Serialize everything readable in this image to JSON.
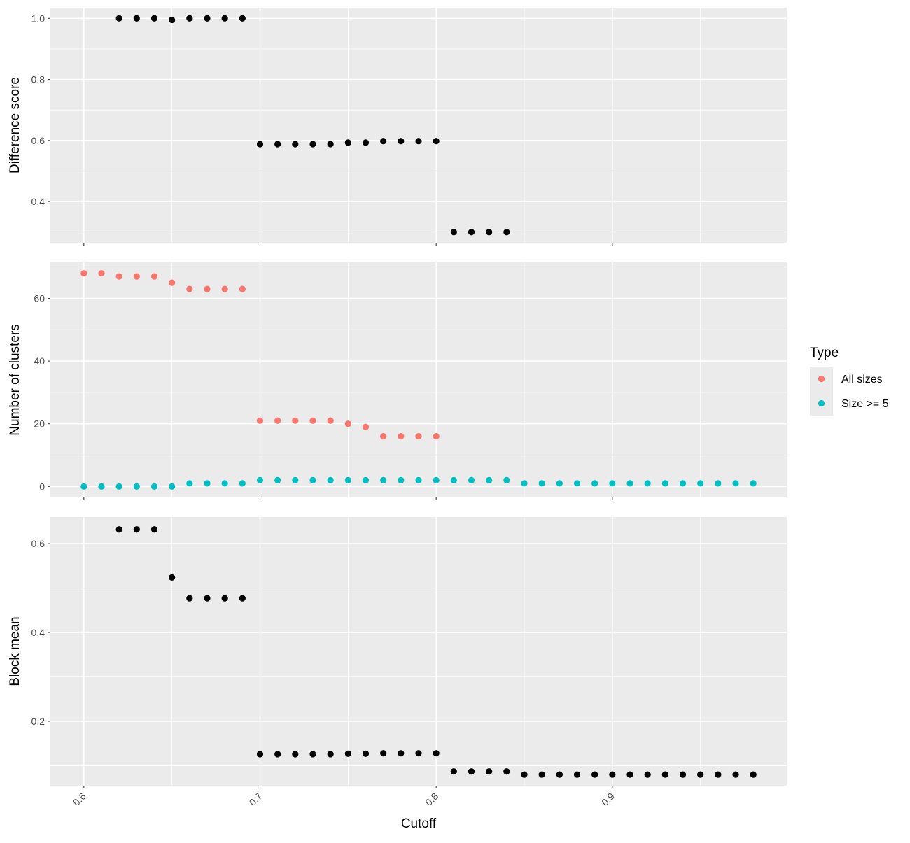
{
  "chart_data": [
    {
      "type": "scatter",
      "ylabel": "Difference score",
      "ylim": [
        0.265,
        1.035
      ],
      "yticks": [
        0.4,
        0.6,
        0.8,
        1.0
      ],
      "ytick_labels": [
        "0.4",
        "0.6",
        "0.8",
        "1.0"
      ],
      "grid": true,
      "series": [
        {
          "color": "#000000",
          "x": [
            0.62,
            0.63,
            0.64,
            0.65,
            0.66,
            0.67,
            0.68,
            0.69,
            0.7,
            0.71,
            0.72,
            0.73,
            0.74,
            0.75,
            0.76,
            0.77,
            0.78,
            0.79,
            0.8,
            0.81,
            0.82,
            0.83,
            0.84
          ],
          "values": [
            1.0,
            1.0,
            1.0,
            0.995,
            1.0,
            1.0,
            1.0,
            1.0,
            0.588,
            0.588,
            0.588,
            0.588,
            0.588,
            0.593,
            0.593,
            0.598,
            0.598,
            0.598,
            0.598,
            0.3,
            0.3,
            0.3,
            0.3
          ]
        }
      ]
    },
    {
      "type": "scatter",
      "ylabel": "Number of clusters",
      "ylim": [
        -3.5,
        71.5
      ],
      "yticks": [
        0,
        20,
        40,
        60
      ],
      "ytick_labels": [
        "0",
        "20",
        "40",
        "60"
      ],
      "grid": true,
      "series": [
        {
          "name": "All sizes",
          "color": "#F8766D",
          "x": [
            0.6,
            0.61,
            0.62,
            0.63,
            0.64,
            0.65,
            0.66,
            0.67,
            0.68,
            0.69,
            0.7,
            0.71,
            0.72,
            0.73,
            0.74,
            0.75,
            0.76,
            0.77,
            0.78,
            0.79,
            0.8
          ],
          "values": [
            68,
            68,
            67,
            67,
            67,
            65,
            63,
            63,
            63,
            63,
            21,
            21,
            21,
            21,
            21,
            20,
            19,
            16,
            16,
            16,
            16
          ]
        },
        {
          "name": "Size >= 5",
          "color": "#00BFC4",
          "x": [
            0.6,
            0.61,
            0.62,
            0.63,
            0.64,
            0.65,
            0.66,
            0.67,
            0.68,
            0.69,
            0.7,
            0.71,
            0.72,
            0.73,
            0.74,
            0.75,
            0.76,
            0.77,
            0.78,
            0.79,
            0.8,
            0.81,
            0.82,
            0.83,
            0.84,
            0.85,
            0.86,
            0.87,
            0.88,
            0.89,
            0.9,
            0.91,
            0.92,
            0.93,
            0.94,
            0.95,
            0.96,
            0.97,
            0.98
          ],
          "values": [
            0,
            0,
            0,
            0,
            0,
            0,
            1,
            1,
            1,
            1,
            2,
            2,
            2,
            2,
            2,
            2,
            2,
            2,
            2,
            2,
            2,
            2,
            2,
            2,
            2,
            1,
            1,
            1,
            1,
            1,
            1,
            1,
            1,
            1,
            1,
            1,
            1,
            1,
            1
          ]
        }
      ]
    },
    {
      "type": "scatter",
      "ylabel": "Block mean",
      "xlabel": "Cutoff",
      "ylim": [
        0.055,
        0.66
      ],
      "yticks": [
        0.2,
        0.4,
        0.6
      ],
      "ytick_labels": [
        "0.2",
        "0.4",
        "0.6"
      ],
      "grid": true,
      "series": [
        {
          "color": "#000000",
          "x": [
            0.62,
            0.63,
            0.64,
            0.65,
            0.66,
            0.67,
            0.68,
            0.69,
            0.7,
            0.71,
            0.72,
            0.73,
            0.74,
            0.75,
            0.76,
            0.77,
            0.78,
            0.79,
            0.8,
            0.81,
            0.82,
            0.83,
            0.84,
            0.85,
            0.86,
            0.87,
            0.88,
            0.89,
            0.9,
            0.91,
            0.92,
            0.93,
            0.94,
            0.95,
            0.96,
            0.97,
            0.98
          ],
          "values": [
            0.632,
            0.632,
            0.632,
            0.524,
            0.477,
            0.477,
            0.477,
            0.477,
            0.126,
            0.126,
            0.126,
            0.126,
            0.126,
            0.127,
            0.127,
            0.128,
            0.128,
            0.128,
            0.128,
            0.087,
            0.087,
            0.087,
            0.087,
            0.08,
            0.08,
            0.08,
            0.08,
            0.08,
            0.08,
            0.08,
            0.08,
            0.08,
            0.08,
            0.08,
            0.08,
            0.08,
            0.08
          ]
        }
      ]
    }
  ],
  "shared_x": {
    "xlabel": "Cutoff",
    "xlim": [
      0.581,
      0.999
    ],
    "xticks": [
      0.6,
      0.7,
      0.8,
      0.9
    ],
    "xtick_labels": [
      "0.6",
      "0.7",
      "0.8",
      "0.9"
    ]
  },
  "legend": {
    "title": "Type",
    "position": "right",
    "entries": [
      {
        "label": "All sizes",
        "color": "#F8766D"
      },
      {
        "label": "Size >= 5",
        "color": "#00BFC4"
      }
    ]
  },
  "colors": {
    "panel_background": "#EBEBEB",
    "grid": "#FFFFFF",
    "axis_text": "#4D4D4D",
    "tick": "#333333"
  }
}
